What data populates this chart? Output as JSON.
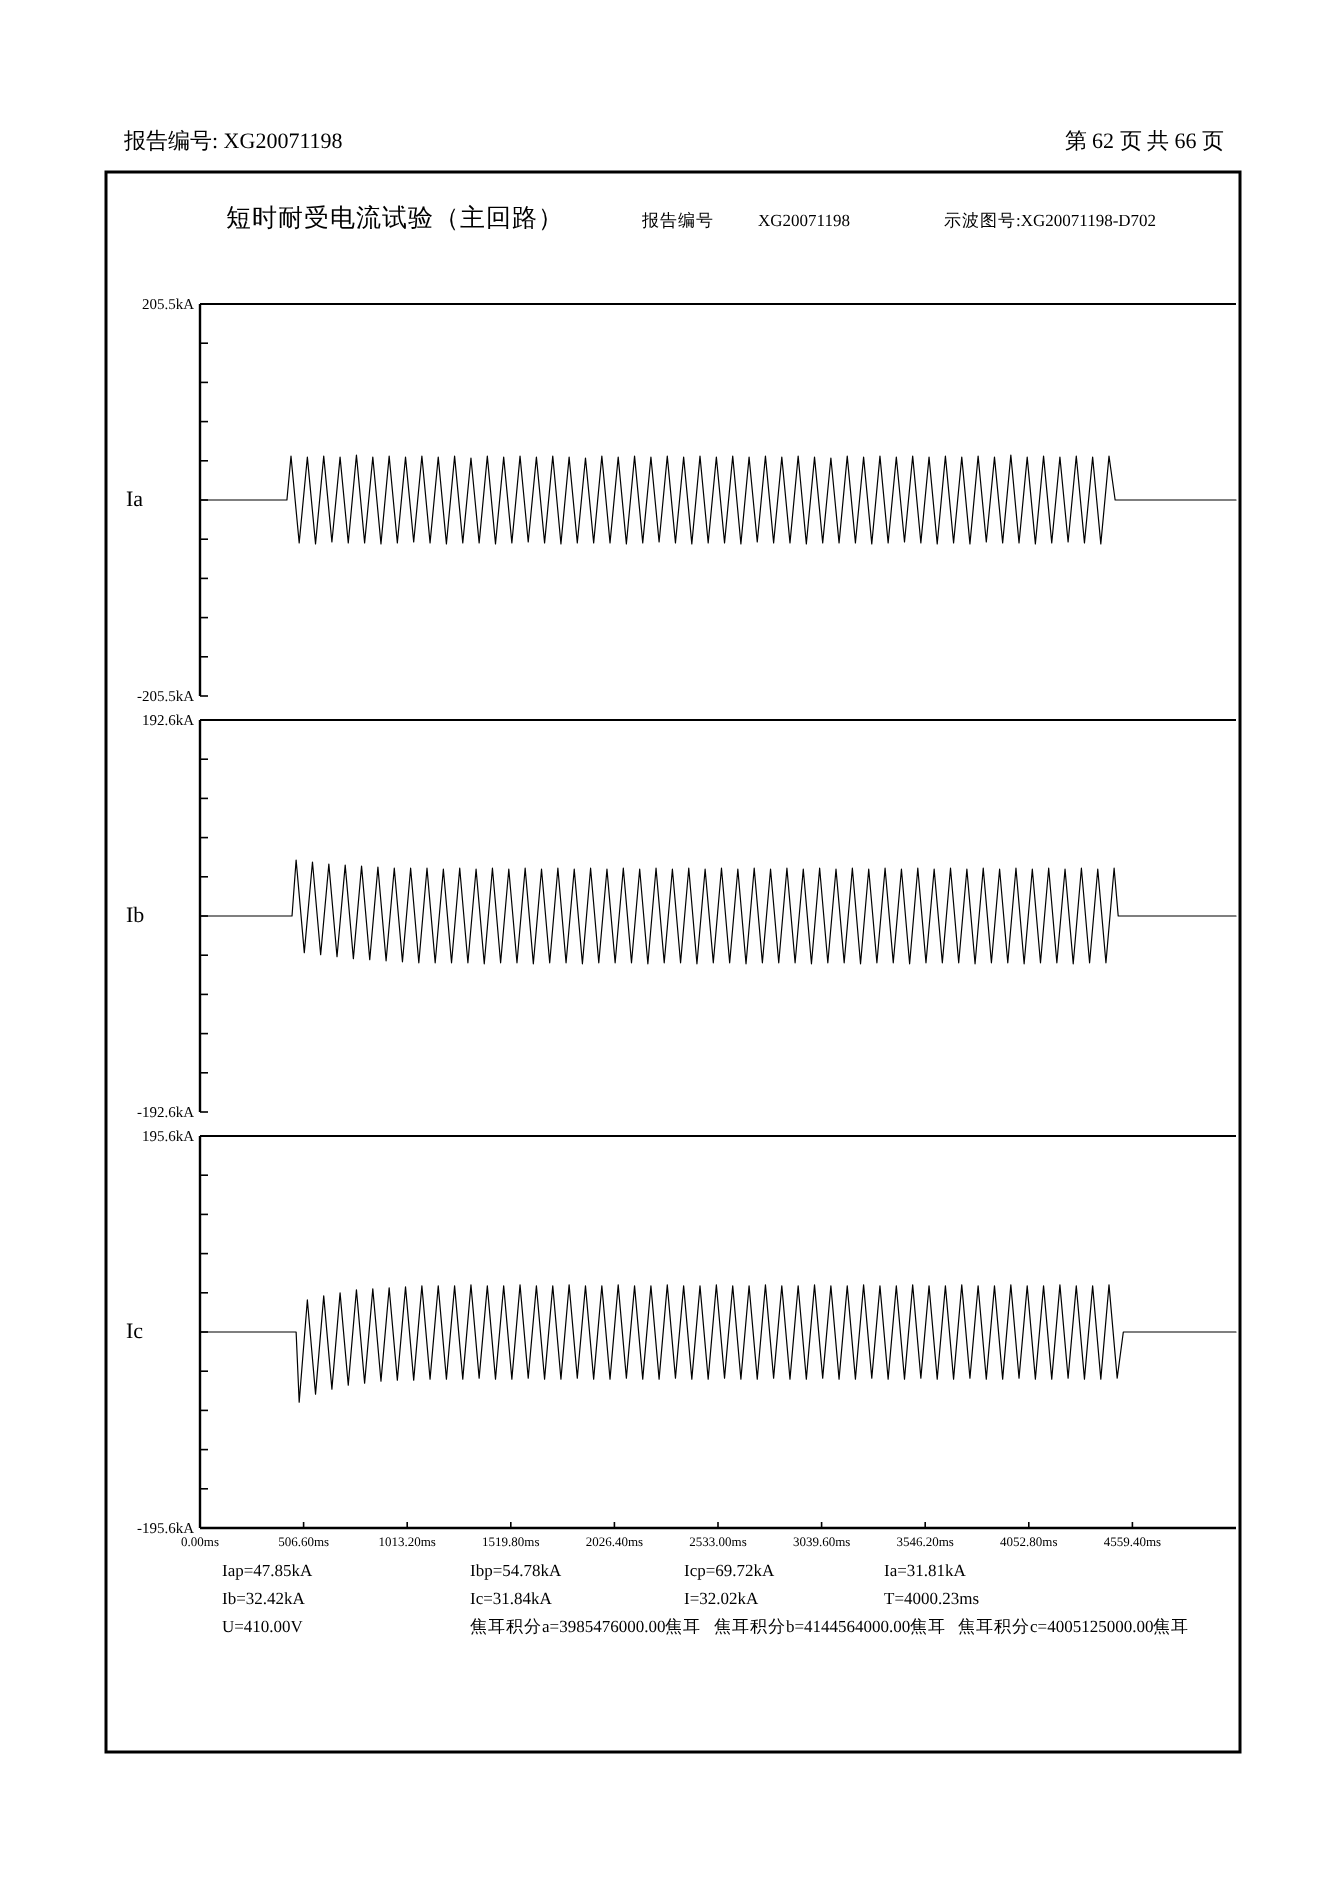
{
  "chart_data": [
    {
      "type": "line",
      "title": "短时耐受电流试验（主回路）",
      "annotations": [
        "报告编号: XG20071198",
        "第 62 页 共 66 页",
        "报告编号",
        "XG20071198",
        "示波图号:XG20071198-D702"
      ],
      "ylabel": "Ia",
      "color": "#000000",
      "xlim": [
        0,
        5066
      ],
      "ylim": [
        -205.5,
        205.5
      ],
      "tick_labels": "y",
      "yticks": [
        {
          "value": 205.5,
          "label": "205.5kA"
        },
        {
          "value": 164.4,
          "label": null
        },
        {
          "value": 123.3,
          "label": null
        },
        {
          "value": 82.2,
          "label": null
        },
        {
          "value": 41.1,
          "label": null
        },
        {
          "value": 0,
          "label": null
        },
        {
          "value": -41.1,
          "label": null
        },
        {
          "value": -82.2,
          "label": null
        },
        {
          "value": -123.3,
          "label": null
        },
        {
          "value": -164.4,
          "label": null
        },
        {
          "value": -205.5,
          "label": "-205.5kA"
        }
      ],
      "x": [
        0,
        425,
        445,
        485,
        525,
        565,
        605,
        645,
        685,
        725,
        765,
        805,
        845,
        885,
        925,
        965,
        1005,
        1045,
        1085,
        1125,
        1165,
        1205,
        1245,
        1285,
        1325,
        1365,
        1405,
        1445,
        1485,
        1525,
        1565,
        1605,
        1645,
        1685,
        1725,
        1765,
        1805,
        1845,
        1885,
        1925,
        1965,
        2005,
        2045,
        2085,
        2125,
        2165,
        2205,
        2245,
        2285,
        2325,
        2365,
        2405,
        2445,
        2485,
        2525,
        2565,
        2605,
        2645,
        2685,
        2725,
        2765,
        2805,
        2845,
        2885,
        2925,
        2965,
        3005,
        3045,
        3085,
        3125,
        3165,
        3205,
        3245,
        3285,
        3325,
        3365,
        3405,
        3445,
        3485,
        3525,
        3565,
        3605,
        3645,
        3685,
        3725,
        3765,
        3805,
        3845,
        3885,
        3925,
        3965,
        4005,
        4045,
        4085,
        4125,
        4165,
        4205,
        4245,
        4285,
        4325,
        4365,
        4405,
        4445,
        4475,
        5066
      ],
      "values": [
        0,
        0,
        46,
        -45,
        45,
        -46,
        46,
        -44,
        45,
        -45,
        47,
        -45,
        45,
        -46,
        46,
        -45,
        45,
        -44,
        46,
        -45,
        45,
        -46,
        46,
        -45,
        44,
        -45,
        46,
        -46,
        45,
        -45,
        46,
        -44,
        45,
        -45,
        46,
        -46,
        45,
        -45,
        44,
        -45,
        46,
        -45,
        45,
        -46,
        46,
        -45,
        45,
        -44,
        46,
        -45,
        45,
        -46,
        46,
        -45,
        45,
        -45,
        46,
        -46,
        45,
        -44,
        46,
        -45,
        45,
        -45,
        46,
        -46,
        45,
        -45,
        44,
        -45,
        46,
        -45,
        45,
        -46,
        46,
        -45,
        45,
        -44,
        46,
        -45,
        45,
        -46,
        46,
        -45,
        45,
        -46,
        46,
        -44,
        45,
        -45,
        47,
        -45,
        45,
        -46,
        46,
        -45,
        45,
        -44,
        46,
        -45,
        45,
        -46,
        46,
        0,
        0
      ]
    },
    {
      "type": "line",
      "ylabel": "Ib",
      "color": "#000000",
      "xlim": [
        0,
        5066
      ],
      "ylim": [
        -192.6,
        192.6
      ],
      "tick_labels": "y",
      "yticks": [
        {
          "value": 192.6,
          "label": "192.6kA"
        },
        {
          "value": 154.08,
          "label": null
        },
        {
          "value": 115.56,
          "label": null
        },
        {
          "value": 77.04,
          "label": null
        },
        {
          "value": 38.52,
          "label": null
        },
        {
          "value": 0,
          "label": null
        },
        {
          "value": -38.52,
          "label": null
        },
        {
          "value": -77.04,
          "label": null
        },
        {
          "value": -115.56,
          "label": null
        },
        {
          "value": -154.08,
          "label": null
        },
        {
          "value": -192.6,
          "label": "-192.6kA"
        }
      ],
      "x": [
        0,
        450,
        470,
        510,
        550,
        590,
        630,
        670,
        710,
        750,
        790,
        830,
        870,
        910,
        950,
        990,
        1030,
        1070,
        1110,
        1150,
        1190,
        1230,
        1270,
        1310,
        1350,
        1390,
        1430,
        1470,
        1510,
        1550,
        1590,
        1630,
        1670,
        1710,
        1750,
        1790,
        1830,
        1870,
        1910,
        1950,
        1990,
        2030,
        2070,
        2110,
        2150,
        2190,
        2230,
        2270,
        2310,
        2350,
        2390,
        2430,
        2470,
        2510,
        2550,
        2590,
        2630,
        2670,
        2710,
        2750,
        2790,
        2830,
        2870,
        2910,
        2950,
        2990,
        3030,
        3070,
        3110,
        3150,
        3190,
        3230,
        3270,
        3310,
        3350,
        3390,
        3430,
        3470,
        3510,
        3550,
        3590,
        3630,
        3670,
        3710,
        3750,
        3790,
        3830,
        3870,
        3910,
        3950,
        3990,
        4030,
        4070,
        4110,
        4150,
        4190,
        4230,
        4270,
        4310,
        4350,
        4390,
        4430,
        4470,
        4490,
        5066
      ],
      "values": [
        0,
        0,
        55,
        -36,
        53,
        -38,
        51,
        -40,
        50,
        -42,
        49,
        -43,
        48,
        -44,
        47,
        -45,
        47,
        -46,
        47,
        -46,
        46,
        -46,
        47,
        -46,
        46,
        -47,
        47,
        -46,
        46,
        -46,
        47,
        -47,
        46,
        -46,
        47,
        -46,
        46,
        -47,
        47,
        -46,
        46,
        -46,
        47,
        -46,
        46,
        -47,
        47,
        -46,
        46,
        -46,
        47,
        -47,
        46,
        -46,
        47,
        -46,
        46,
        -47,
        47,
        -46,
        46,
        -46,
        47,
        -46,
        46,
        -47,
        47,
        -46,
        46,
        -46,
        47,
        -47,
        46,
        -46,
        47,
        -46,
        46,
        -47,
        47,
        -46,
        46,
        -46,
        47,
        -46,
        46,
        -47,
        47,
        -46,
        46,
        -46,
        47,
        -47,
        46,
        -46,
        47,
        -46,
        46,
        -47,
        47,
        -46,
        46,
        -46,
        47,
        0,
        0
      ]
    },
    {
      "type": "line",
      "ylabel": "Ic",
      "color": "#000000",
      "xlim": [
        0,
        5066
      ],
      "ylim": [
        -195.6,
        195.6
      ],
      "yticks": [
        {
          "value": 195.6,
          "label": "195.6kA"
        },
        {
          "value": 156.48,
          "label": null
        },
        {
          "value": 117.36,
          "label": null
        },
        {
          "value": 78.24,
          "label": null
        },
        {
          "value": 39.12,
          "label": null
        },
        {
          "value": 0,
          "label": null
        },
        {
          "value": -39.12,
          "label": null
        },
        {
          "value": -78.24,
          "label": null
        },
        {
          "value": -117.36,
          "label": null
        },
        {
          "value": -156.48,
          "label": null
        },
        {
          "value": -195.6,
          "label": "-195.6kA"
        }
      ],
      "xticks": [
        {
          "value": 0,
          "label": "0.00ms"
        },
        {
          "value": 506.6,
          "label": "506.60ms"
        },
        {
          "value": 1013.2,
          "label": "1013.20ms"
        },
        {
          "value": 1519.8,
          "label": "1519.80ms"
        },
        {
          "value": 2026.4,
          "label": "2026.40ms"
        },
        {
          "value": 2533,
          "label": "2533.00ms"
        },
        {
          "value": 3039.6,
          "label": "3039.60ms"
        },
        {
          "value": 3546.2,
          "label": "3546.20ms"
        },
        {
          "value": 4052.8,
          "label": "4052.80ms"
        },
        {
          "value": 4559.4,
          "label": "4559.40ms"
        }
      ],
      "annotations": [
        "Iap=47.85kA",
        "Ibp=54.78kA",
        "Icp=69.72kA",
        "Ia=31.81kA",
        "Ib=32.42kA",
        "Ic=31.84kA",
        "I=32.02kA",
        "T=4000.23ms",
        "U=410.00V",
        "焦耳积分a=3985476000.00焦耳",
        "焦耳积分b=4144564000.00焦耳",
        "焦耳积分c=4005125000.00焦耳"
      ],
      "x": [
        0,
        470,
        485,
        525,
        565,
        605,
        645,
        685,
        725,
        765,
        805,
        845,
        885,
        925,
        965,
        1005,
        1045,
        1085,
        1125,
        1165,
        1205,
        1245,
        1285,
        1325,
        1365,
        1405,
        1445,
        1485,
        1525,
        1565,
        1605,
        1645,
        1685,
        1725,
        1765,
        1805,
        1845,
        1885,
        1925,
        1965,
        2005,
        2045,
        2085,
        2125,
        2165,
        2205,
        2245,
        2285,
        2325,
        2365,
        2405,
        2445,
        2485,
        2525,
        2565,
        2605,
        2645,
        2685,
        2725,
        2765,
        2805,
        2845,
        2885,
        2925,
        2965,
        3005,
        3045,
        3085,
        3125,
        3165,
        3205,
        3245,
        3285,
        3325,
        3365,
        3405,
        3445,
        3485,
        3525,
        3565,
        3605,
        3645,
        3685,
        3725,
        3765,
        3805,
        3845,
        3885,
        3925,
        3965,
        4005,
        4045,
        4085,
        4125,
        4165,
        4205,
        4245,
        4285,
        4325,
        4365,
        4405,
        4445,
        4485,
        4515,
        5066
      ],
      "values": [
        0,
        0,
        -70,
        32,
        -62,
        36,
        -57,
        39,
        -53,
        42,
        -51,
        43,
        -49,
        44,
        -48,
        45,
        -48,
        46,
        -47,
        46,
        -47,
        46,
        -47,
        47,
        -46,
        46,
        -47,
        46,
        -47,
        47,
        -46,
        46,
        -47,
        46,
        -47,
        47,
        -46,
        46,
        -47,
        46,
        -47,
        47,
        -46,
        46,
        -47,
        46,
        -47,
        47,
        -46,
        46,
        -47,
        46,
        -47,
        47,
        -46,
        46,
        -47,
        46,
        -47,
        47,
        -46,
        46,
        -47,
        46,
        -47,
        47,
        -46,
        46,
        -47,
        46,
        -47,
        47,
        -46,
        46,
        -47,
        46,
        -47,
        47,
        -46,
        46,
        -47,
        46,
        -47,
        47,
        -46,
        46,
        -47,
        46,
        -47,
        47,
        -46,
        46,
        -47,
        46,
        -47,
        47,
        -46,
        46,
        -47,
        46,
        -47,
        47,
        -46,
        0,
        0
      ]
    }
  ]
}
